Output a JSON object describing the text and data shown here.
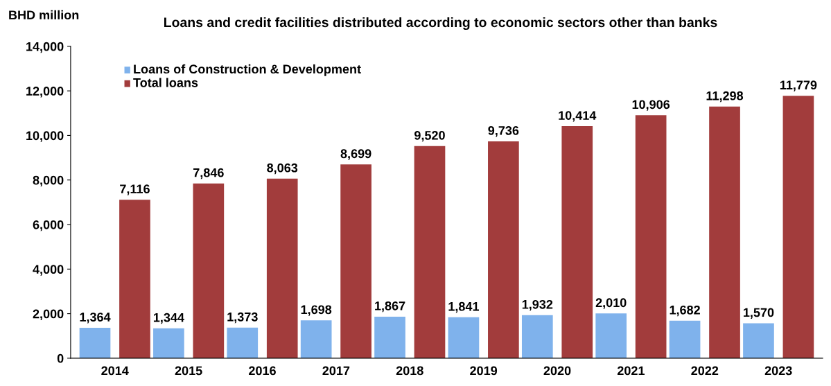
{
  "chart_data": {
    "type": "bar",
    "title": "Loans and credit facilities distributed according to economic sectors other than banks",
    "ylabel": "BHD million",
    "categories": [
      "2014",
      "2015",
      "2016",
      "2017",
      "2018",
      "2019",
      "2020",
      "2021",
      "2022",
      "2023"
    ],
    "series": [
      {
        "name": "Loans of Construction & Development",
        "color": "#7fb2ec",
        "values": [
          1364,
          1344,
          1373,
          1698,
          1867,
          1841,
          1932,
          2010,
          1682,
          1570
        ],
        "value_labels": [
          "1,364",
          "1,344",
          "1,373",
          "1,698",
          "1,867",
          "1,841",
          "1,932",
          "2,010",
          "1,682",
          "1,570"
        ]
      },
      {
        "name": "Total loans",
        "color": "#a23c3c",
        "values": [
          7116,
          7846,
          8063,
          8699,
          9520,
          9736,
          10414,
          10906,
          11298,
          11779
        ],
        "value_labels": [
          "7,116",
          "7,846",
          "8,063",
          "8,699",
          "9,520",
          "9,736",
          "10,414",
          "10,906",
          "11,298",
          "11,779"
        ]
      }
    ],
    "ylim": [
      0,
      14000
    ],
    "yticks": [
      0,
      {
        "value": 2000,
        "label": "2,000"
      },
      {
        "value": 4000,
        "label": "4,000"
      },
      {
        "value": 6000,
        "label": "6,000"
      },
      {
        "value": 8000,
        "label": "8,000"
      },
      {
        "value": 10000,
        "label": "10,000"
      },
      {
        "value": 12000,
        "label": "12,000"
      },
      {
        "value": 14000,
        "label": "14,000"
      }
    ],
    "grid": false,
    "legend": "top left"
  }
}
